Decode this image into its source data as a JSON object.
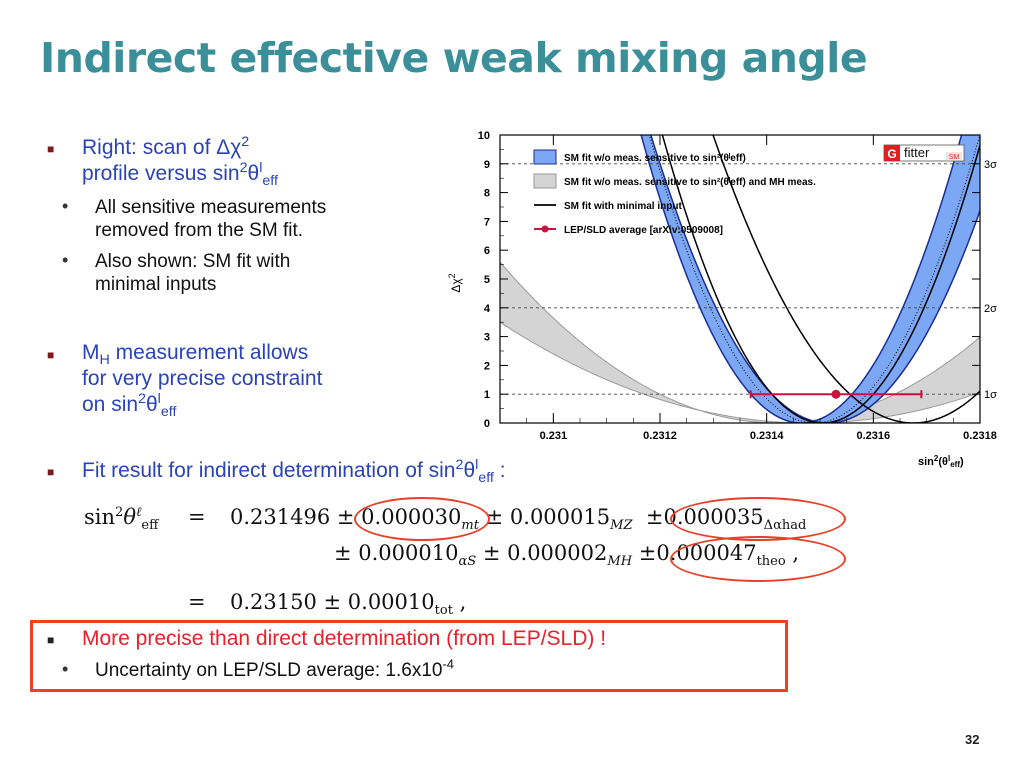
{
  "title": "Indirect effective weak mixing angle",
  "page_number": "32",
  "bullets": {
    "b1_line1_pre": "Right: scan of Δχ",
    "b1_line1_sup": "2",
    "b1_line2_pre": "profile versus sin",
    "b1_line2_sup": "2",
    "b1_line2_mid": "θ",
    "b1_line2_sup2": "l",
    "b1_line2_sub": "eff",
    "b1_sub1_l1": "All sensitive measurements",
    "b1_sub1_l2": "removed from the SM fit.",
    "b1_sub2_l1": "Also shown: SM fit with",
    "b1_sub2_l2": "minimal inputs",
    "b2_line1_pre": "M",
    "b2_line1_sub": "H",
    "b2_line1_post": " measurement allows",
    "b2_line2": "for very precise constraint",
    "b2_line3_pre": "on sin",
    "b2_line3_sup": "2",
    "b2_line3_mid": "θ",
    "b2_line3_sup2": "l",
    "b2_line3_sub": "eff",
    "b3_pre": "Fit result for indirect determination of sin",
    "b3_sup": "2",
    "b3_mid": "θ",
    "b3_sup2": "l",
    "b3_sub": "eff",
    "b3_post": " :",
    "b4": "More precise than direct determination (from LEP/SLD) !",
    "b4_sub_pre": "Uncertainty on LEP/SLD average: 1.6x10",
    "b4_sub_sup": "-4"
  },
  "equation": {
    "lhs": "sin",
    "lhs_sup": "2",
    "lhs_theta": "θ",
    "lhs_sup_l": "ℓ",
    "lhs_sub": "eff",
    "eq": "=",
    "central": "0.231496 ±",
    "e1": "0.000030",
    "e1_sub": "m",
    "e1_sub2": "t",
    "e2": "± 0.000015",
    "e2_sub": "M",
    "e2_sub2": "Z",
    "e3_pm": "±",
    "e3": "0.000035",
    "e3_sub": "Δα",
    "e3_sub2": "had",
    "e4": "± 0.000010",
    "e4_sub": "α",
    "e4_sub2": "S",
    "e5": "± 0.000002",
    "e5_sub": "M",
    "e5_sub2": "H",
    "e6_pm": "±",
    "e6": "0.000047",
    "e6_sub": "theo",
    "e6_post": " ,",
    "tot_eq": "=",
    "tot": "0.23150 ± 0.00010",
    "tot_sub": "tot",
    "tot_post": " ,"
  },
  "colors": {
    "title": "#3b8f98",
    "text_blue": "#2a44b8",
    "text_red": "#e8202a",
    "box_red": "#f04020",
    "band_blue": "#7ba7f5",
    "band_gray": "#d4d4d4",
    "point_red": "#cc1040"
  },
  "chart_data": {
    "type": "line",
    "ylabel_pre": "Δχ",
    "ylabel_sup": "2",
    "xlabel_pre": "sin",
    "xlabel_sup": "2",
    "xlabel_mid": "(θ",
    "xlabel_sup2": "l",
    "xlabel_sub": "eff",
    "xlabel_post": ")",
    "xlim": [
      0.2309,
      0.2318
    ],
    "ylim": [
      0,
      10
    ],
    "xticks": [
      {
        "value": 0.231,
        "label": "0.231"
      },
      {
        "value": 0.2312,
        "label": "0.2312"
      },
      {
        "value": 0.2314,
        "label": "0.2314"
      },
      {
        "value": 0.2316,
        "label": "0.2316"
      },
      {
        "value": 0.2318,
        "label": "0.2318"
      }
    ],
    "yticks": [
      0,
      1,
      2,
      3,
      4,
      5,
      6,
      7,
      8,
      9,
      10
    ],
    "sigma_lines": [
      {
        "value": 1,
        "label": "1σ"
      },
      {
        "value": 4,
        "label": "2σ"
      },
      {
        "value": 9,
        "label": "3σ"
      }
    ],
    "series": [
      {
        "legend": "SM fit w/o meas. sensitive to sin²(θˡeff)",
        "kind": "band",
        "color": "#7ba7f5",
        "center_lower": 0.23148,
        "width_lower": 9.5e-05,
        "center_upper": 0.23148,
        "width_upper": 0.000105
      },
      {
        "legend": "SM fit w/o meas. sensitive to sin²(θˡeff) and MH meas.",
        "kind": "band",
        "color": "#d4d4d4",
        "center_lower": 0.23142,
        "width_lower": 0.00022,
        "center_upper": 0.23148,
        "width_upper": 0.00031
      },
      {
        "legend": "SM fit with minimal input",
        "kind": "line",
        "color": "#000000",
        "center": 0.231525,
        "width": 9.5e-05
      },
      {
        "legend": "LEP/SLD average [arXiv:0509008]",
        "kind": "point",
        "color": "#cc1040",
        "x": 0.23153,
        "xerr": 0.00016,
        "y": 1
      }
    ],
    "logo": {
      "letter": "G",
      "text": "fitter",
      "badge": "SM"
    },
    "legend_position": "top-left"
  }
}
